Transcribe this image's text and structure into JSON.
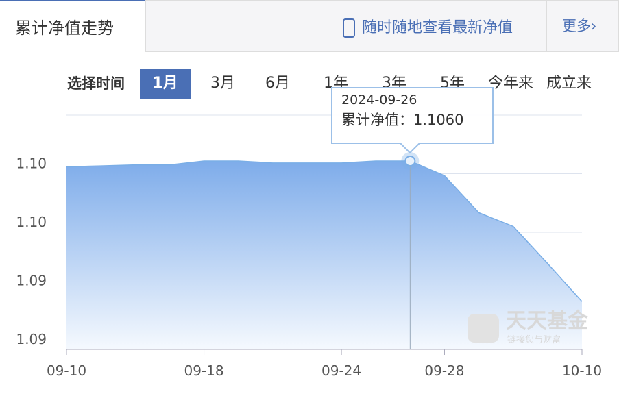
{
  "header": {
    "tab": "累计净值走势",
    "promo": "随时随地查看最新净值",
    "more": "更多›"
  },
  "ranges": {
    "label": "选择时间",
    "options": [
      "1月",
      "3月",
      "6月",
      "1年",
      "3年",
      "5年",
      "今年来",
      "成立来"
    ]
  },
  "watermark": {
    "brand": "天天基金",
    "slogan": "链接您与财富"
  },
  "tooltip": {
    "date": "2024-09-26",
    "label": "累计净值：",
    "value": "1.1060"
  },
  "chart_data": {
    "type": "area",
    "categories": [
      "09-10",
      null,
      null,
      null,
      "09-18",
      null,
      null,
      null,
      "09-24",
      null,
      null,
      "09-28",
      null,
      null,
      null,
      "10-10"
    ],
    "series": [
      {
        "name": "累计净值",
        "color": "#7aaee6",
        "values": [
          1.1054,
          1.1055,
          1.1056,
          1.1056,
          1.106,
          1.106,
          1.1058,
          1.1058,
          1.1058,
          1.106,
          1.106,
          1.1045,
          1.1007,
          1.0993,
          1.0955,
          1.0916
        ]
      }
    ],
    "ylim": [
      1.0867,
      1.1107
    ],
    "yticks": [
      {
        "value": 1.0867,
        "label": "1.09"
      },
      {
        "value": 1.0927,
        "label": "1.09"
      },
      {
        "value": 1.0987,
        "label": "1.10"
      },
      {
        "value": 1.1047,
        "label": "1.10"
      },
      {
        "value": 1.1107,
        "label": ""
      }
    ],
    "grid": true
  }
}
